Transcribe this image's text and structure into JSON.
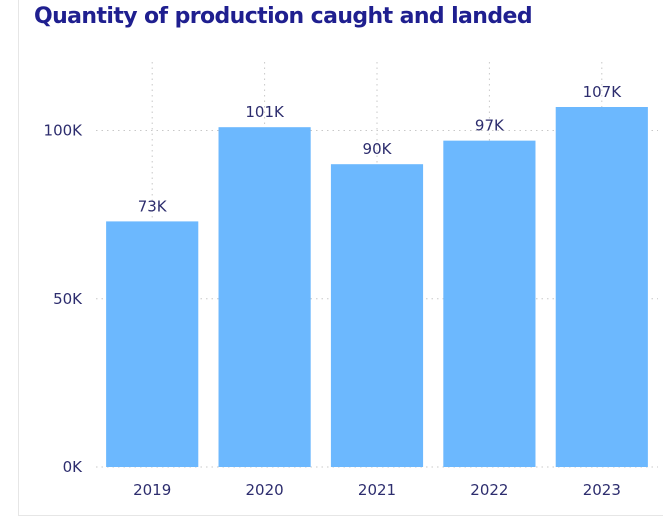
{
  "chart_data": {
    "type": "bar",
    "title": "Quantity of production caught and landed",
    "xlabel": "",
    "ylabel": "",
    "categories": [
      "2019",
      "2020",
      "2021",
      "2022",
      "2023"
    ],
    "values": [
      73000,
      101000,
      90000,
      97000,
      107000
    ],
    "data_labels": [
      "73K",
      "101K",
      "90K",
      "97K",
      "107K"
    ],
    "y_ticks": [
      0,
      50000,
      100000
    ],
    "y_tick_labels": [
      "0K",
      "50K",
      "100K"
    ],
    "ylim": [
      0,
      107000
    ],
    "grid": true,
    "legend": "none",
    "bar_color": "#6cb8fe",
    "title_color": "#1f1f8f",
    "text_color": "#2d2d6e"
  }
}
